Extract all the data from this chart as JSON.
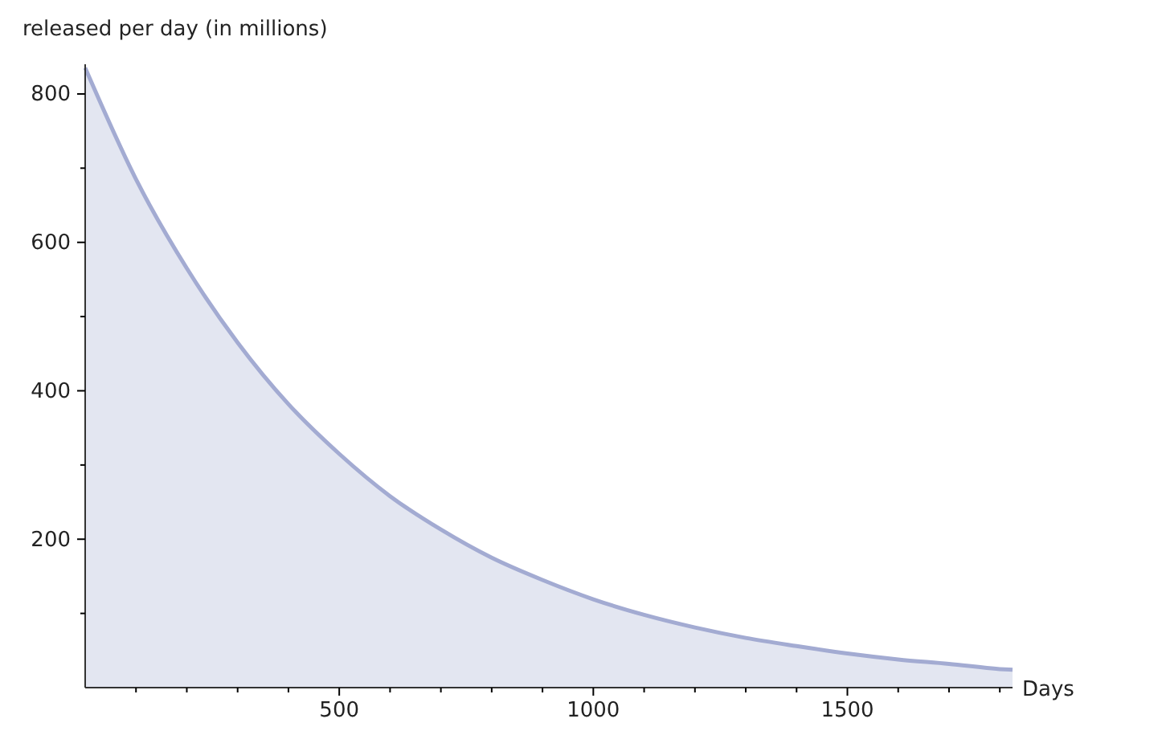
{
  "chart_data": {
    "type": "area",
    "xlabel": "Days",
    "ylabel": "released per day (in millions)",
    "series": [
      {
        "color": "#a3abd2",
        "x": [
          0,
          100,
          200,
          300,
          400,
          500,
          600,
          700,
          800,
          900,
          1000,
          1100,
          1200,
          1300,
          1400,
          1500,
          1600,
          1700,
          1800,
          1825
        ],
        "values": [
          835,
          685,
          565,
          465,
          382,
          315,
          258,
          213,
          175,
          145,
          119,
          98,
          81,
          67,
          56,
          46,
          38,
          32,
          25,
          24
        ]
      }
    ],
    "xlim": [
      0,
      1825
    ],
    "ylim": [
      0,
      840
    ],
    "xticks": [
      {
        "value": 100,
        "label": null
      },
      {
        "value": 200,
        "label": null
      },
      {
        "value": 300,
        "label": null
      },
      {
        "value": 400,
        "label": null
      },
      500,
      {
        "value": 600,
        "label": null
      },
      {
        "value": 700,
        "label": null
      },
      {
        "value": 800,
        "label": null
      },
      {
        "value": 900,
        "label": null
      },
      1000,
      {
        "value": 1100,
        "label": null
      },
      {
        "value": 1200,
        "label": null
      },
      {
        "value": 1300,
        "label": null
      },
      {
        "value": 1400,
        "label": null
      },
      1500,
      {
        "value": 1600,
        "label": null
      },
      {
        "value": 1700,
        "label": null
      },
      {
        "value": 1800,
        "label": null
      }
    ],
    "yticks": [
      {
        "value": 100,
        "label": null
      },
      200,
      {
        "value": 300,
        "label": null
      },
      400,
      {
        "value": 500,
        "label": null
      },
      600,
      {
        "value": 700,
        "label": null
      },
      800
    ],
    "grid": false
  }
}
